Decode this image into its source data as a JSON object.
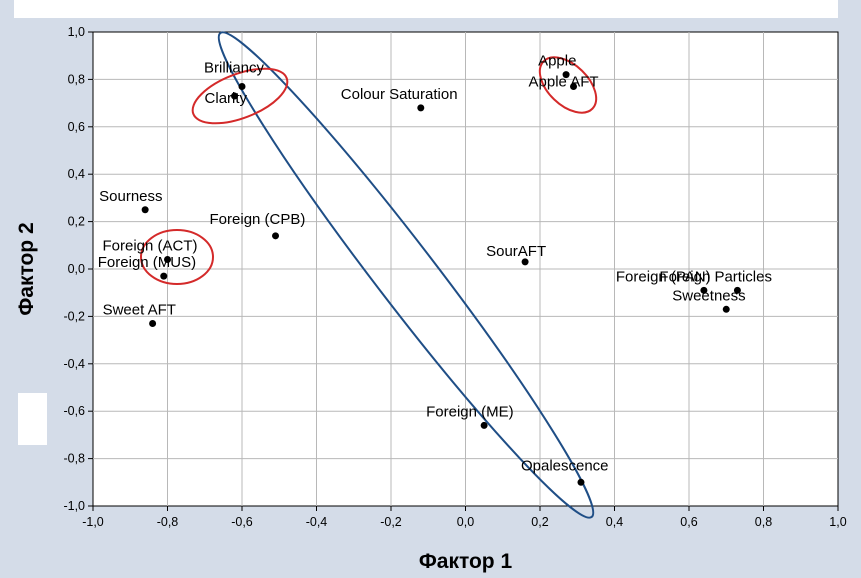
{
  "chart_data": {
    "type": "scatter",
    "xlabel": "Фактор 1",
    "ylabel": "Фактор 2",
    "xlim": [
      -1.0,
      1.0
    ],
    "ylim": [
      -1.0,
      1.0
    ],
    "x_ticks": [
      "-1,0",
      "-0,8",
      "-0,6",
      "-0,4",
      "-0,2",
      "0,0",
      "0,2",
      "0,4",
      "0,6",
      "0,8",
      "1,0"
    ],
    "y_ticks": [
      "1,0",
      "0,8",
      "0,6",
      "0,4",
      "0,2",
      "0,0",
      "-0,2",
      "-0,4",
      "-0,6",
      "-0,8",
      "-1,0"
    ],
    "grid": true,
    "points": [
      {
        "label": "Brilliancy",
        "x": -0.6,
        "y": 0.77
      },
      {
        "label": "Clarity",
        "x": -0.62,
        "y": 0.73
      },
      {
        "label": "Colour Saturation",
        "x": -0.12,
        "y": 0.68
      },
      {
        "label": "Apple",
        "x": 0.27,
        "y": 0.82
      },
      {
        "label": "Apple AFT",
        "x": 0.29,
        "y": 0.77
      },
      {
        "label": "Sourness",
        "x": -0.86,
        "y": 0.25
      },
      {
        "label": "Foreign (CPB)",
        "x": -0.51,
        "y": 0.14
      },
      {
        "label": "Foreign (ACT)",
        "x": -0.8,
        "y": 0.04
      },
      {
        "label": "Foreign (MUS)",
        "x": -0.81,
        "y": -0.03
      },
      {
        "label": "SourAFT",
        "x": 0.16,
        "y": 0.03
      },
      {
        "label": "Foreign (PAN)",
        "x": 0.64,
        "y": -0.09
      },
      {
        "label": "Foreign Particles",
        "x": 0.73,
        "y": -0.09
      },
      {
        "label": "Sweetness",
        "x": 0.7,
        "y": -0.17
      },
      {
        "label": "Sweet AFT",
        "x": -0.84,
        "y": -0.23
      },
      {
        "label": "Foreign (ME)",
        "x": 0.05,
        "y": -0.66
      },
      {
        "label": "Opalescence",
        "x": 0.31,
        "y": -0.9
      }
    ],
    "colors": {
      "point": "#000000",
      "red_ellipse": "#d42a2a",
      "blue_ellipse": "#1f4e86",
      "plot_bg": "#ffffff",
      "page_bg": "#d4dce8",
      "grid": "#b8b8b8"
    }
  }
}
